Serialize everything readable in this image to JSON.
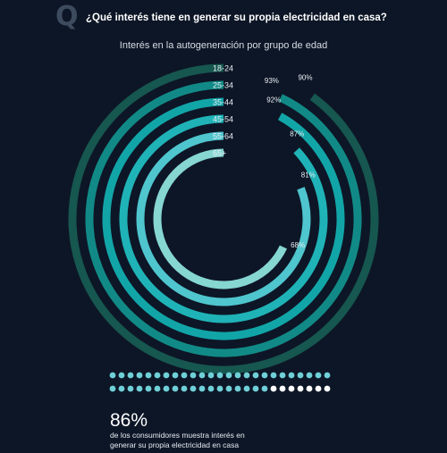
{
  "header": {
    "q_letter": "Q",
    "question": "¿Qué interés tiene en generar su propia electricidad en casa?"
  },
  "chart_data": {
    "type": "radial-bar",
    "title": "Interés en la autogeneración por grupo de edad",
    "series": [
      {
        "name": "18-24",
        "value": 90,
        "label": "90%",
        "color": "#16574f"
      },
      {
        "name": "25-34",
        "value": 93,
        "label": "93%",
        "color": "#118a87"
      },
      {
        "name": "35-44",
        "value": 92,
        "label": "92%",
        "color": "#12a5a8"
      },
      {
        "name": "45-54",
        "value": 87,
        "label": "87%",
        "color": "#1fb3b7"
      },
      {
        "name": "55-64",
        "value": 81,
        "label": "81%",
        "color": "#4fc5ce"
      },
      {
        "name": "65+",
        "value": 68,
        "label": "68%",
        "color": "#86d6d2"
      }
    ],
    "max": 100
  },
  "summary": {
    "value": "86%",
    "text_line1": "de los consumidores muestra interés en",
    "text_line2": "generar su propia electricidad en casa",
    "dot_total": 50,
    "dot_highlight": 43,
    "dot_color": "#6fd0d8",
    "dot_rest_color": "#ffffff"
  }
}
